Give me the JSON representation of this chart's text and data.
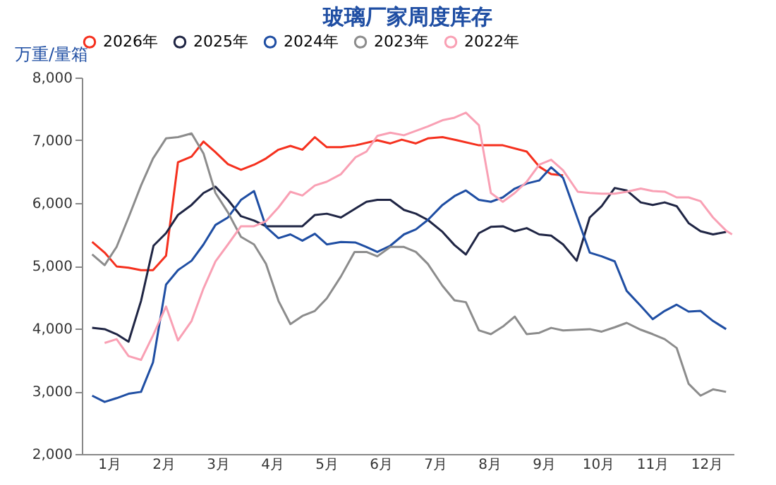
{
  "chart_data": {
    "type": "line",
    "title": "玻璃厂家周度库存",
    "ylabel": "万重/量箱",
    "xlim": [
      0.5,
      12.5
    ],
    "xticks": [
      {
        "value": 1,
        "label": "1月"
      },
      {
        "value": 2,
        "label": "2月"
      },
      {
        "value": 3,
        "label": "3月"
      },
      {
        "value": 4,
        "label": "4月"
      },
      {
        "value": 5,
        "label": "5月"
      },
      {
        "value": 6,
        "label": "6月"
      },
      {
        "value": 7,
        "label": "7月"
      },
      {
        "value": 8,
        "label": "8月"
      },
      {
        "value": 9,
        "label": "9月"
      },
      {
        "value": 10,
        "label": "10月"
      },
      {
        "value": 11,
        "label": "11月"
      },
      {
        "value": 12,
        "label": "12月"
      }
    ],
    "ylim": [
      2000,
      8000
    ],
    "yticks": [
      {
        "value": 2000,
        "label": "2,000"
      },
      {
        "value": 3000,
        "label": "3,000"
      },
      {
        "value": 4000,
        "label": "4,000"
      },
      {
        "value": 5000,
        "label": "5,000"
      },
      {
        "value": 6000,
        "label": "6,000"
      },
      {
        "value": 7000,
        "label": "7,000"
      },
      {
        "value": 8000,
        "label": "8,000"
      }
    ],
    "legend": "top",
    "series": [
      {
        "name": "2026年",
        "color": "#f5301e",
        "x": [
          0.69,
          0.92,
          1.14,
          1.36,
          1.59,
          1.81,
          2.05,
          2.27,
          2.52,
          2.74,
          2.96,
          3.19,
          3.43,
          3.67,
          3.89,
          4.12,
          4.34,
          4.56,
          4.79,
          5.01,
          5.27,
          5.54,
          5.94,
          6.18,
          6.39,
          6.65,
          6.87,
          7.14,
          7.41,
          7.81,
          8.25,
          8.69,
          8.92,
          9.14,
          9.36
        ],
        "values": [
          5380,
          5210,
          4990,
          4970,
          4930,
          4930,
          5160,
          6650,
          6740,
          6980,
          6810,
          6620,
          6530,
          6610,
          6710,
          6850,
          6910,
          6850,
          7050,
          6890,
          6890,
          6920,
          7000,
          6950,
          7010,
          6950,
          7030,
          7050,
          7000,
          6920,
          6920,
          6820,
          6580,
          6460,
          6440
        ]
      },
      {
        "name": "2025年",
        "color": "#1f2544",
        "x": [
          0.69,
          0.92,
          1.14,
          1.36,
          1.59,
          1.82,
          2.05,
          2.27,
          2.52,
          2.74,
          2.96,
          3.19,
          3.43,
          3.67,
          3.89,
          4.12,
          4.34,
          4.56,
          4.79,
          5.01,
          5.27,
          5.74,
          5.94,
          6.18,
          6.43,
          6.65,
          6.87,
          7.14,
          7.36,
          7.57,
          7.81,
          8.03,
          8.25,
          8.47,
          8.69,
          8.92,
          9.14,
          9.36,
          9.61,
          9.85,
          10.07,
          10.31,
          10.53,
          10.79,
          11.01,
          11.23,
          11.45,
          11.67,
          11.89,
          12.12,
          12.36
        ],
        "values": [
          4010,
          3990,
          3910,
          3790,
          4440,
          5320,
          5520,
          5810,
          5970,
          6160,
          6260,
          6050,
          5790,
          5720,
          5630,
          5630,
          5630,
          5630,
          5810,
          5830,
          5770,
          6020,
          6050,
          6050,
          5890,
          5830,
          5730,
          5540,
          5330,
          5180,
          5520,
          5620,
          5630,
          5550,
          5600,
          5500,
          5480,
          5340,
          5080,
          5770,
          5950,
          6240,
          6200,
          6010,
          5970,
          6010,
          5950,
          5680,
          5550,
          5500,
          5540
        ]
      },
      {
        "name": "2024年",
        "color": "#1f4ea3",
        "x": [
          0.69,
          0.92,
          1.14,
          1.36,
          1.59,
          1.81,
          2.05,
          2.27,
          2.52,
          2.74,
          2.96,
          3.19,
          3.43,
          3.67,
          3.89,
          4.12,
          4.34,
          4.56,
          4.79,
          5.01,
          5.27,
          5.54,
          5.74,
          5.94,
          6.18,
          6.43,
          6.65,
          6.87,
          7.14,
          7.36,
          7.57,
          7.81,
          8.03,
          8.25,
          8.47,
          8.69,
          8.92,
          9.14,
          9.36,
          9.85,
          10.07,
          10.31,
          10.53,
          10.79,
          11.01,
          11.23,
          11.45,
          11.67,
          11.89,
          12.12,
          12.36
        ],
        "values": [
          2930,
          2830,
          2890,
          2960,
          2990,
          3460,
          4700,
          4930,
          5080,
          5340,
          5650,
          5770,
          6050,
          6190,
          5620,
          5440,
          5500,
          5400,
          5510,
          5340,
          5380,
          5370,
          5300,
          5220,
          5320,
          5500,
          5580,
          5730,
          5970,
          6110,
          6200,
          6050,
          6020,
          6090,
          6230,
          6310,
          6360,
          6570,
          6400,
          5210,
          5150,
          5070,
          4600,
          4360,
          4150,
          4280,
          4380,
          4270,
          4280,
          4120,
          3990
        ]
      },
      {
        "name": "2023年",
        "color": "#8c8c8c",
        "x": [
          0.69,
          0.92,
          1.14,
          1.36,
          1.59,
          1.81,
          2.05,
          2.27,
          2.52,
          2.74,
          2.96,
          3.19,
          3.43,
          3.67,
          3.89,
          4.12,
          4.34,
          4.56,
          4.79,
          5.01,
          5.27,
          5.52,
          5.74,
          5.94,
          6.18,
          6.43,
          6.65,
          6.87,
          7.14,
          7.36,
          7.57,
          7.81,
          8.03,
          8.25,
          8.47,
          8.69,
          8.92,
          9.14,
          9.36,
          9.63,
          9.85,
          10.07,
          10.31,
          10.53,
          10.79,
          11.01,
          11.23,
          11.45,
          11.67,
          11.89,
          12.12,
          12.36
        ],
        "values": [
          5180,
          5010,
          5300,
          5770,
          6280,
          6710,
          7030,
          7050,
          7110,
          6790,
          6160,
          5850,
          5460,
          5340,
          5030,
          4440,
          4070,
          4200,
          4280,
          4480,
          4830,
          5220,
          5220,
          5150,
          5300,
          5300,
          5220,
          5030,
          4680,
          4450,
          4420,
          3970,
          3910,
          4030,
          4190,
          3910,
          3930,
          4010,
          3970,
          3980,
          3990,
          3950,
          4020,
          4090,
          3980,
          3910,
          3830,
          3690,
          3120,
          2930,
          3030,
          2990
        ]
      },
      {
        "name": "2022年",
        "color": "#f9a0b4",
        "x": [
          0.92,
          1.14,
          1.36,
          1.59,
          1.81,
          2.05,
          2.27,
          2.52,
          2.74,
          2.96,
          3.19,
          3.43,
          3.67,
          3.89,
          4.12,
          4.34,
          4.56,
          4.79,
          5.01,
          5.27,
          5.54,
          5.74,
          5.94,
          6.18,
          6.43,
          6.65,
          6.87,
          7.14,
          7.36,
          7.57,
          7.81,
          8.03,
          8.25,
          8.47,
          8.69,
          8.92,
          9.14,
          9.36,
          9.63,
          9.85,
          10.07,
          10.31,
          10.53,
          10.79,
          11.01,
          11.23,
          11.45,
          11.67,
          11.89,
          12.12,
          12.36,
          12.47
        ],
        "values": [
          3770,
          3830,
          3560,
          3500,
          3890,
          4350,
          3810,
          4120,
          4640,
          5070,
          5340,
          5630,
          5630,
          5710,
          5930,
          6180,
          6120,
          6280,
          6340,
          6460,
          6730,
          6820,
          7070,
          7120,
          7080,
          7150,
          7220,
          7320,
          7360,
          7440,
          7240,
          6160,
          6020,
          6160,
          6340,
          6610,
          6690,
          6520,
          6180,
          6160,
          6150,
          6150,
          6180,
          6230,
          6190,
          6180,
          6090,
          6090,
          6030,
          5770,
          5560,
          5500
        ]
      }
    ]
  }
}
